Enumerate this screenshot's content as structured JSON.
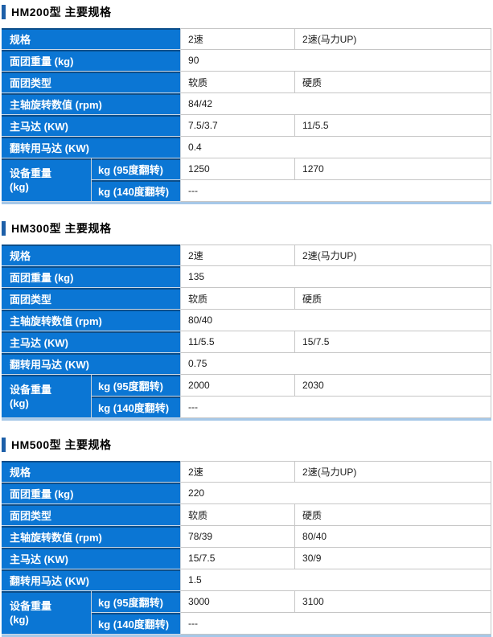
{
  "colors": {
    "header_blue": "#0b76d4",
    "header_blue_dark_top": "#0b4d89",
    "title_accent_bar": "#1d5fa8",
    "cell_border_gray": "#c6c6c6",
    "table_bottom_strip": "#a6c8e8"
  },
  "labels": {
    "spec": "规格",
    "dough_weight": "面团重量 (kg)",
    "dough_type": "面团类型",
    "spindle_rpm": "主轴旋转数值 (rpm)",
    "main_motor": "主马达 (KW)",
    "tilt_motor": "翻转用马达 (KW)",
    "equip_weight_l1": "设备重量",
    "equip_weight_l2": "(kg)",
    "weight_95": "kg (95度翻转)",
    "weight_140": "kg (140度翻转)"
  },
  "sections": [
    {
      "title": "HM200型 主要规格",
      "values": {
        "speed_standard": "2速",
        "speed_up": "2速(马力UP)",
        "dough_weight": "90",
        "dough_soft": "软质",
        "dough_hard": "硬质",
        "rpm": "84/42",
        "main_motor_std": "7.5/3.7",
        "main_motor_up": "11/5.5",
        "tilt_motor": "0.4",
        "weight95_std": "1250",
        "weight95_up": "1270",
        "weight140": "---"
      }
    },
    {
      "title": "HM300型 主要规格",
      "values": {
        "speed_standard": "2速",
        "speed_up": "2速(马力UP)",
        "dough_weight": "135",
        "dough_soft": "软质",
        "dough_hard": "硬质",
        "rpm": "80/40",
        "main_motor_std": "11/5.5",
        "main_motor_up": "15/7.5",
        "tilt_motor": "0.75",
        "weight95_std": "2000",
        "weight95_up": "2030",
        "weight140": "---"
      }
    },
    {
      "title": "HM500型 主要规格",
      "values": {
        "speed_standard": "2速",
        "speed_up": "2速(马力UP)",
        "dough_weight": "220",
        "dough_soft": "软质",
        "dough_hard": "硬质",
        "rpm_std": "78/39",
        "rpm_up": "80/40",
        "main_motor_std": "15/7.5",
        "main_motor_up": "30/9",
        "tilt_motor": "1.5",
        "weight95_std": "3000",
        "weight95_up": "3100",
        "weight140": "---"
      }
    }
  ]
}
